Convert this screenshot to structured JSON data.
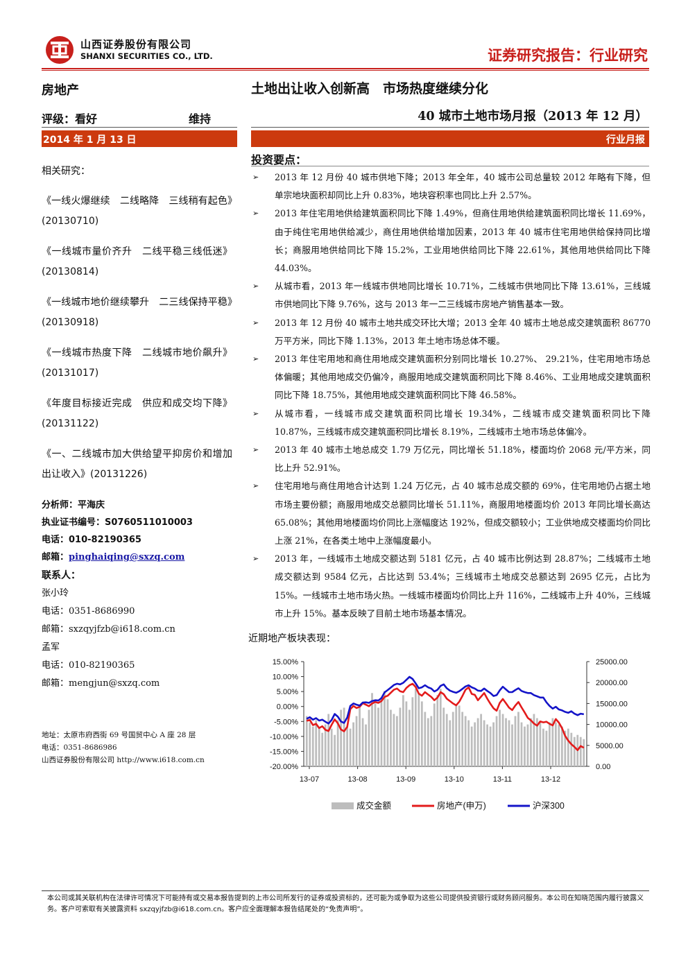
{
  "header": {
    "company_cn": "山西证券股份有限公司",
    "company_en": "SHANXI SECURITIES CO., LTD.",
    "report_type": "证券研究报告：行业研究",
    "brand_color": "#c8201c",
    "bar_color": "#cc3a0e"
  },
  "left": {
    "sector": "房地产",
    "rating_label": "评级：看好",
    "rating_action": "维持",
    "date": "2014 年 1 月 13 日",
    "related_heading": "相关研究：",
    "related": [
      "《一线火爆继续　二线略降　三线稍有起色》(20130710)",
      "《一线城市量价齐升　二线平稳三线低迷》(20130814)",
      "《一线城市地价继续攀升　二三线保持平稳》(20130918)",
      "《一线城市热度下降　二线城市地价飙升》(20131017)",
      "《年度目标接近完成　供应和成交均下降》(20131122)",
      "《一、二线城市加大供给望平抑房价和增加出让收入》(20131226)"
    ],
    "analyst_label": "分析师：",
    "analyst_name": "平海庆",
    "cert_label": "执业证书编号：",
    "cert_no": "S0760511010003",
    "phone_label": "电话：",
    "phone": "010-82190365",
    "email_label": "邮箱：",
    "email": "pinghaiqing@sxzq.com",
    "contacts_heading": "联系人：",
    "contacts": [
      {
        "name": "张小玲",
        "phone_label": "电话：",
        "phone": "0351-8686990",
        "email_label": "邮箱：",
        "email": "sxzqyjfzb@i618.com.cn"
      },
      {
        "name": "孟军",
        "phone_label": "电话：",
        "phone": "010-82190365",
        "email_label": "邮箱：",
        "email": "mengjun@sxzq.com"
      }
    ],
    "address_line": "地址：太原市府西街 69 号国贸中心 A 座 28 层",
    "address_phone": "电话：0351-8686986",
    "address_company": "山西证券股份有限公司 http://www.i618.com.cn"
  },
  "right": {
    "main_title": "土地出让收入创新高　市场热度继续分化",
    "sub_title": "40 城市土地市场月报（2013 年 12 月）",
    "type_label": "行业月报",
    "points_heading": "投资要点：",
    "points": [
      "2013 年 12 月份 40 城市供地下降；2013 年全年，40 城市公司总量较 2012 年略有下降，但单宗地块面积却同比上升 0.83%，地块容积率也同比上升 2.57%。",
      "2013 年住宅用地供给建筑面积同比下降 1.49%，但商住用地供给建筑面积同比增长 11.69%，由于纯住宅用地供给减少，商住用地供给增加因素，2013 年 40 城市住宅用地供给保持同比增长；商服用地供给同比下降 15.2%，工业用地供给同比下降 22.61%，其他用地供给同比下降 44.03%。",
      "从城市看，2013 年一线城市供地同比增长 10.71%，二线城市供地同比下降 13.61%，三线城市供地同比下降 9.76%，这与 2013 年一二三线城市房地产销售基本一致。",
      "2013 年 12 月份 40 城市土地共成交环比大增；2013 全年 40 城市土地总成交建筑面积 86770 万平方米，同比下降 1.13%，2013 年土地市场总体不暖。",
      "2013 年住宅用地和商住用地成交建筑面积分别同比增长 10.27%、 29.21%，住宅用地市场总体偏暖；其他用地成交仍偏冷，商服用地成交建筑面积同比下降 8.46%、工业用地成交建筑面积同比下降 18.75%，其他用地成交建筑面积同比下降 46.58%。",
      "从城市看，一线城市成交建筑面积同比增长 19.34%，二线城市成交建筑面积同比下降 10.87%，三线城市成交建筑面积同比增长 8.19%，二线城市土地市场总体偏冷。",
      "2013 年 40 城市土地总成交 1.79 万亿元，同比增长 51.18%，楼面均价 2068 元/平方米，同比上升 52.91%。",
      "住宅用地与商住用地合计达到 1.24 万亿元，占 40 城市总成交额的 69%，住宅用地仍占据土地市场主要份额；商服用地成交总额同比增长 51.11%，商服用地楼面均价 2013 年同比增长高达 65.08%；其他用地楼面均价同比上涨幅度达 192%，但成交额较小；工业供地成交楼面均价同比上涨 21%，在各类土地中上涨幅度最小。",
      "2013 年，一线城市土地成交额达到 5181 亿元，占 40 城市比例达到 28.87%；二线城市土地成交额达到 9584 亿元，占比达到 53.4%；三线城市土地成交总额达到 2695 亿元，占比为 15%。一线城市土地市场火热。一线城市楼面均价同比上升 116%，二线城市上升 40%，三线城市上升 15%。基本反映了目前土地市场基本情况。"
    ],
    "chart_title": "近期地产板块表现："
  },
  "chart_data": {
    "type": "line",
    "x_ticks": [
      "13-07",
      "13-08",
      "13-09",
      "13-10",
      "13-11",
      "13-12"
    ],
    "y_left_ticks": [
      "15.00%",
      "10.00%",
      "5.00%",
      "0.00%",
      "-5.00%",
      "-10.00%",
      "-15.00%",
      "-20.00%"
    ],
    "y_right_ticks": [
      "25000.00",
      "20000.00",
      "15000.00",
      "10000.00",
      "5000.00",
      "0.00"
    ],
    "ylim_left": [
      -20,
      15
    ],
    "ylim_right": [
      0,
      25000
    ],
    "series": [
      {
        "name": "成交金额",
        "kind": "bar",
        "axis": "right",
        "color": "#bdbdbd",
        "values": [
          12000,
          10500,
          9500,
          11000,
          9000,
          8000,
          10000,
          12500,
          9000,
          7500,
          11000,
          13500,
          14000,
          9500,
          9000,
          10500,
          12000,
          14500,
          11500,
          10000,
          13500,
          17500,
          15000,
          14000,
          16500,
          18000,
          16000,
          13500,
          12500,
          12000,
          14000,
          17000,
          15500,
          13500,
          16500,
          18500,
          17500,
          15500,
          13000,
          11500,
          12000,
          15000,
          17000,
          18500,
          14000,
          12500,
          11000,
          13000,
          14500,
          14500,
          13000,
          12000,
          11000,
          9500,
          10500,
          11500,
          12500,
          11000,
          10000,
          9500,
          10500,
          12000,
          13500,
          12500,
          11500,
          11000,
          10000,
          12000,
          13000,
          10500,
          9500,
          10000,
          11500,
          12500,
          11500,
          10500,
          9000,
          8500,
          10500,
          11500,
          10500,
          10000,
          9500,
          8500,
          9000,
          8000,
          7000,
          7500,
          7000,
          6500
        ]
      },
      {
        "name": "房地产(申万)",
        "kind": "line",
        "axis": "left",
        "color": "#e31b1b",
        "values": [
          -4.8,
          -4.5,
          -6.2,
          -5.8,
          -7.2,
          -6.6,
          -7.8,
          -8.2,
          -6.1,
          -4.3,
          -5.6,
          -7.7,
          -8.3,
          -6.8,
          -0.9,
          0.2,
          -0.5,
          -0.1,
          1.1,
          0.6,
          0.1,
          1.0,
          1.5,
          1.2,
          1.8,
          3.2,
          3.6,
          4.6,
          5.6,
          6.0,
          5.1,
          4.8,
          6.2,
          7.1,
          7.6,
          6.5,
          4.3,
          3.6,
          4.8,
          4.0,
          3.2,
          2.1,
          3.0,
          4.8,
          4.1,
          2.6,
          1.8,
          1.0,
          0.4,
          1.6,
          3.5,
          5.6,
          6.4,
          4.2,
          3.9,
          2.1,
          3.3,
          4.5,
          2.6,
          0.9,
          -0.6,
          -1.4,
          1.2,
          2.5,
          1.1,
          -0.4,
          -1.2,
          0.3,
          1.5,
          -0.3,
          -2.0,
          -3.8,
          -4.6,
          -5.7,
          -6.4,
          -5.0,
          -5.3,
          -5.1,
          -5.8,
          -6.3,
          -4.2,
          -5.4,
          -7.2,
          -9.8,
          -11.4,
          -12.6,
          -13.5,
          -14.6,
          -13.2,
          -13.8
        ]
      },
      {
        "name": "沪深300",
        "kind": "line",
        "axis": "left",
        "color": "#1414c8",
        "values": [
          -4.1,
          -3.6,
          -4.4,
          -3.9,
          -4.7,
          -4.4,
          -5.1,
          -5.7,
          -4.5,
          -2.5,
          -3.4,
          -5.0,
          -5.5,
          -3.7,
          0.2,
          1.0,
          0.6,
          0.3,
          1.3,
          1.4,
          1.2,
          1.8,
          2.1,
          2.0,
          2.8,
          4.7,
          5.5,
          6.3,
          7.2,
          7.6,
          7.4,
          7.9,
          8.9,
          9.9,
          9.2,
          7.7,
          6.1,
          6.4,
          7.1,
          6.4,
          6.0,
          5.0,
          5.6,
          6.9,
          7.4,
          6.1,
          5.3,
          4.9,
          4.6,
          5.1,
          5.9,
          6.7,
          7.1,
          6.4,
          6.0,
          5.3,
          5.2,
          6.0,
          5.2,
          4.5,
          3.5,
          3.8,
          5.4,
          6.6,
          5.7,
          4.8,
          4.8,
          5.5,
          6.1,
          5.2,
          4.8,
          4.5,
          4.5,
          3.8,
          3.4,
          3.0,
          3.0,
          1.4,
          0.2,
          -0.7,
          -0.1,
          -1.0,
          -1.3,
          -1.8,
          -2.1,
          -1.6,
          -2.4,
          -2.9,
          -2.4,
          -2.6
        ]
      }
    ]
  },
  "footer": {
    "disclaimer": "本公司或其关联机构在法律许可情况下可能持有或交易本报告提到的上市公司所发行的证券或投资标的，还可能为或争取为这些公司提供投资银行或财务顾问服务。本公司在知晓范围内履行披露义务。客户可索取有关披露资料 sxzqyjfzb@i618.com.cn。客户应全面理解本报告结尾处的“免责声明”。"
  }
}
